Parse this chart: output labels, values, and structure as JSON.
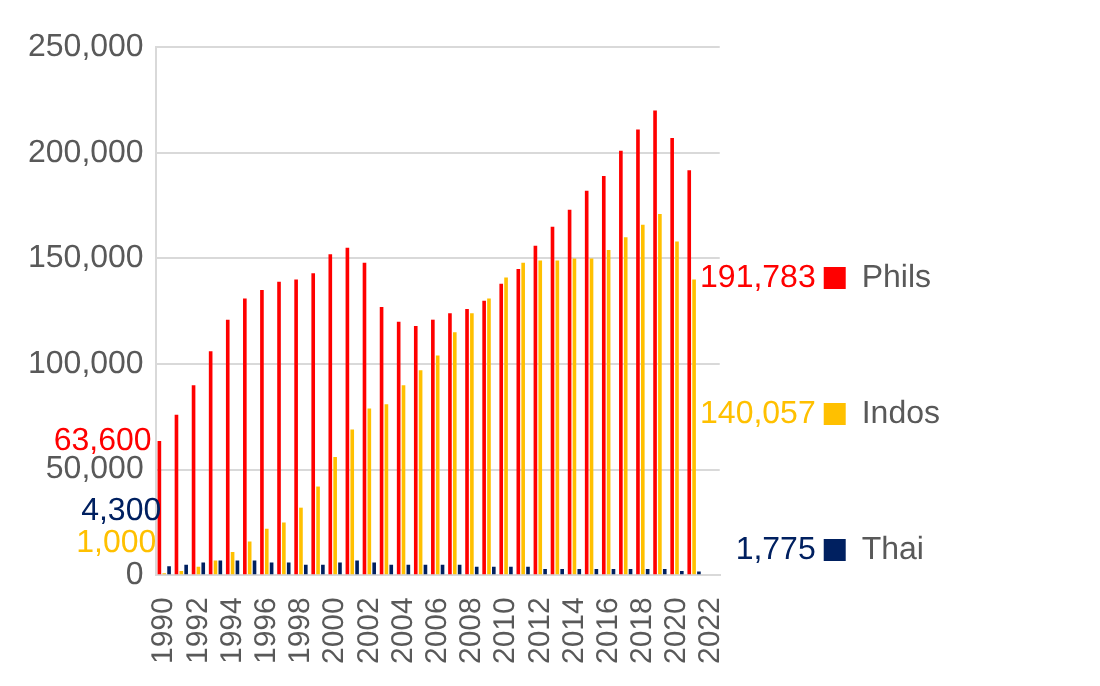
{
  "chart_data": {
    "type": "bar",
    "categories": [
      "1990",
      null,
      "1992",
      null,
      "1994",
      null,
      "1996",
      null,
      "1998",
      null,
      "2000",
      null,
      "2002",
      null,
      "2004",
      null,
      "2006",
      null,
      "2008",
      null,
      "2010",
      null,
      "2012",
      null,
      "2014",
      null,
      "2016",
      null,
      "2018",
      null,
      "2020",
      null,
      "2022"
    ],
    "series": [
      {
        "name": "Phils",
        "color": "#ff0000",
        "values": [
          63600,
          76000,
          90000,
          106000,
          121000,
          131000,
          135000,
          139000,
          140000,
          143000,
          152000,
          155000,
          148000,
          127000,
          120000,
          118000,
          121000,
          124000,
          126000,
          130000,
          138000,
          145000,
          156000,
          165000,
          173000,
          182000,
          189000,
          201000,
          211000,
          220000,
          207000,
          191783,
          null
        ]
      },
      {
        "name": "Indos",
        "color": "#ffc000",
        "values": [
          1000,
          2000,
          4000,
          7000,
          11000,
          16000,
          22000,
          25000,
          32000,
          42000,
          56000,
          69000,
          79000,
          81000,
          90000,
          97000,
          104000,
          115000,
          124000,
          131000,
          141000,
          148000,
          149000,
          149000,
          150000,
          150000,
          154000,
          160000,
          166000,
          171000,
          158000,
          140057,
          null
        ]
      },
      {
        "name": "Thai",
        "color": "#002060",
        "values": [
          4300,
          5000,
          6000,
          7000,
          7000,
          7000,
          6000,
          6000,
          5000,
          5000,
          6000,
          7000,
          6000,
          5000,
          5000,
          5000,
          5000,
          5000,
          4000,
          4000,
          4000,
          4000,
          3000,
          3000,
          3000,
          3000,
          3000,
          3000,
          3000,
          3000,
          2000,
          1775,
          null
        ]
      }
    ],
    "annotations": [
      {
        "text": "63,600",
        "x": "1990",
        "y": 63600
      },
      {
        "text": "4,300",
        "x": "1990",
        "y": 4300
      },
      {
        "text": "1,000",
        "x": "1990",
        "y": 1000
      },
      "191,783",
      "140,057",
      "1,775"
    ],
    "ylim": [
      0,
      250000
    ],
    "yticks": [
      {
        "value": 0,
        "label": "0"
      },
      {
        "value": 50000,
        "label": "50,000"
      },
      {
        "value": 100000,
        "label": "100,000"
      },
      {
        "value": 150000,
        "label": "150,000"
      },
      {
        "value": 200000,
        "label": "200,000"
      },
      {
        "value": 250000,
        "label": "250,000"
      }
    ],
    "grid": "y",
    "legend": "right"
  }
}
